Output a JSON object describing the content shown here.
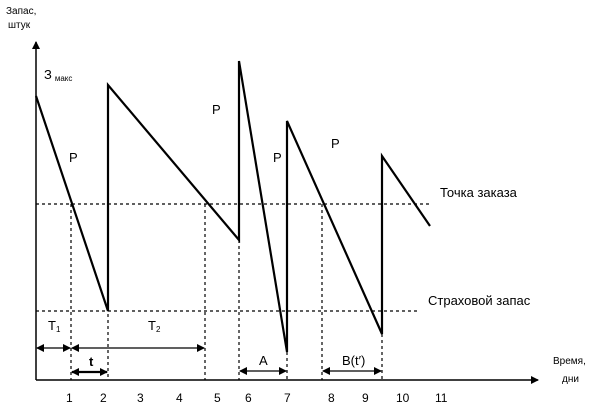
{
  "y_axis_label_line1": "Запас,",
  "y_axis_label_line2": "штук",
  "x_axis_label_line1": "Время,",
  "x_axis_label_line2": "дни",
  "zmax_label": "З",
  "zmax_subscript": "макс",
  "reorder_point_label": "Точка заказа",
  "safety_stock_label": "Страховой запас",
  "p_markers": [
    "P",
    "P",
    "P",
    "P"
  ],
  "period_labels": {
    "t1_main": "T",
    "t1_sub": "1",
    "t2_main": "T",
    "t2_sub": "2",
    "t": "t",
    "a": "A",
    "b": "B(t′)"
  },
  "x_ticks": [
    "1",
    "2",
    "3",
    "4",
    "5",
    "6",
    "7",
    "8",
    "9",
    "10",
    "11"
  ]
}
